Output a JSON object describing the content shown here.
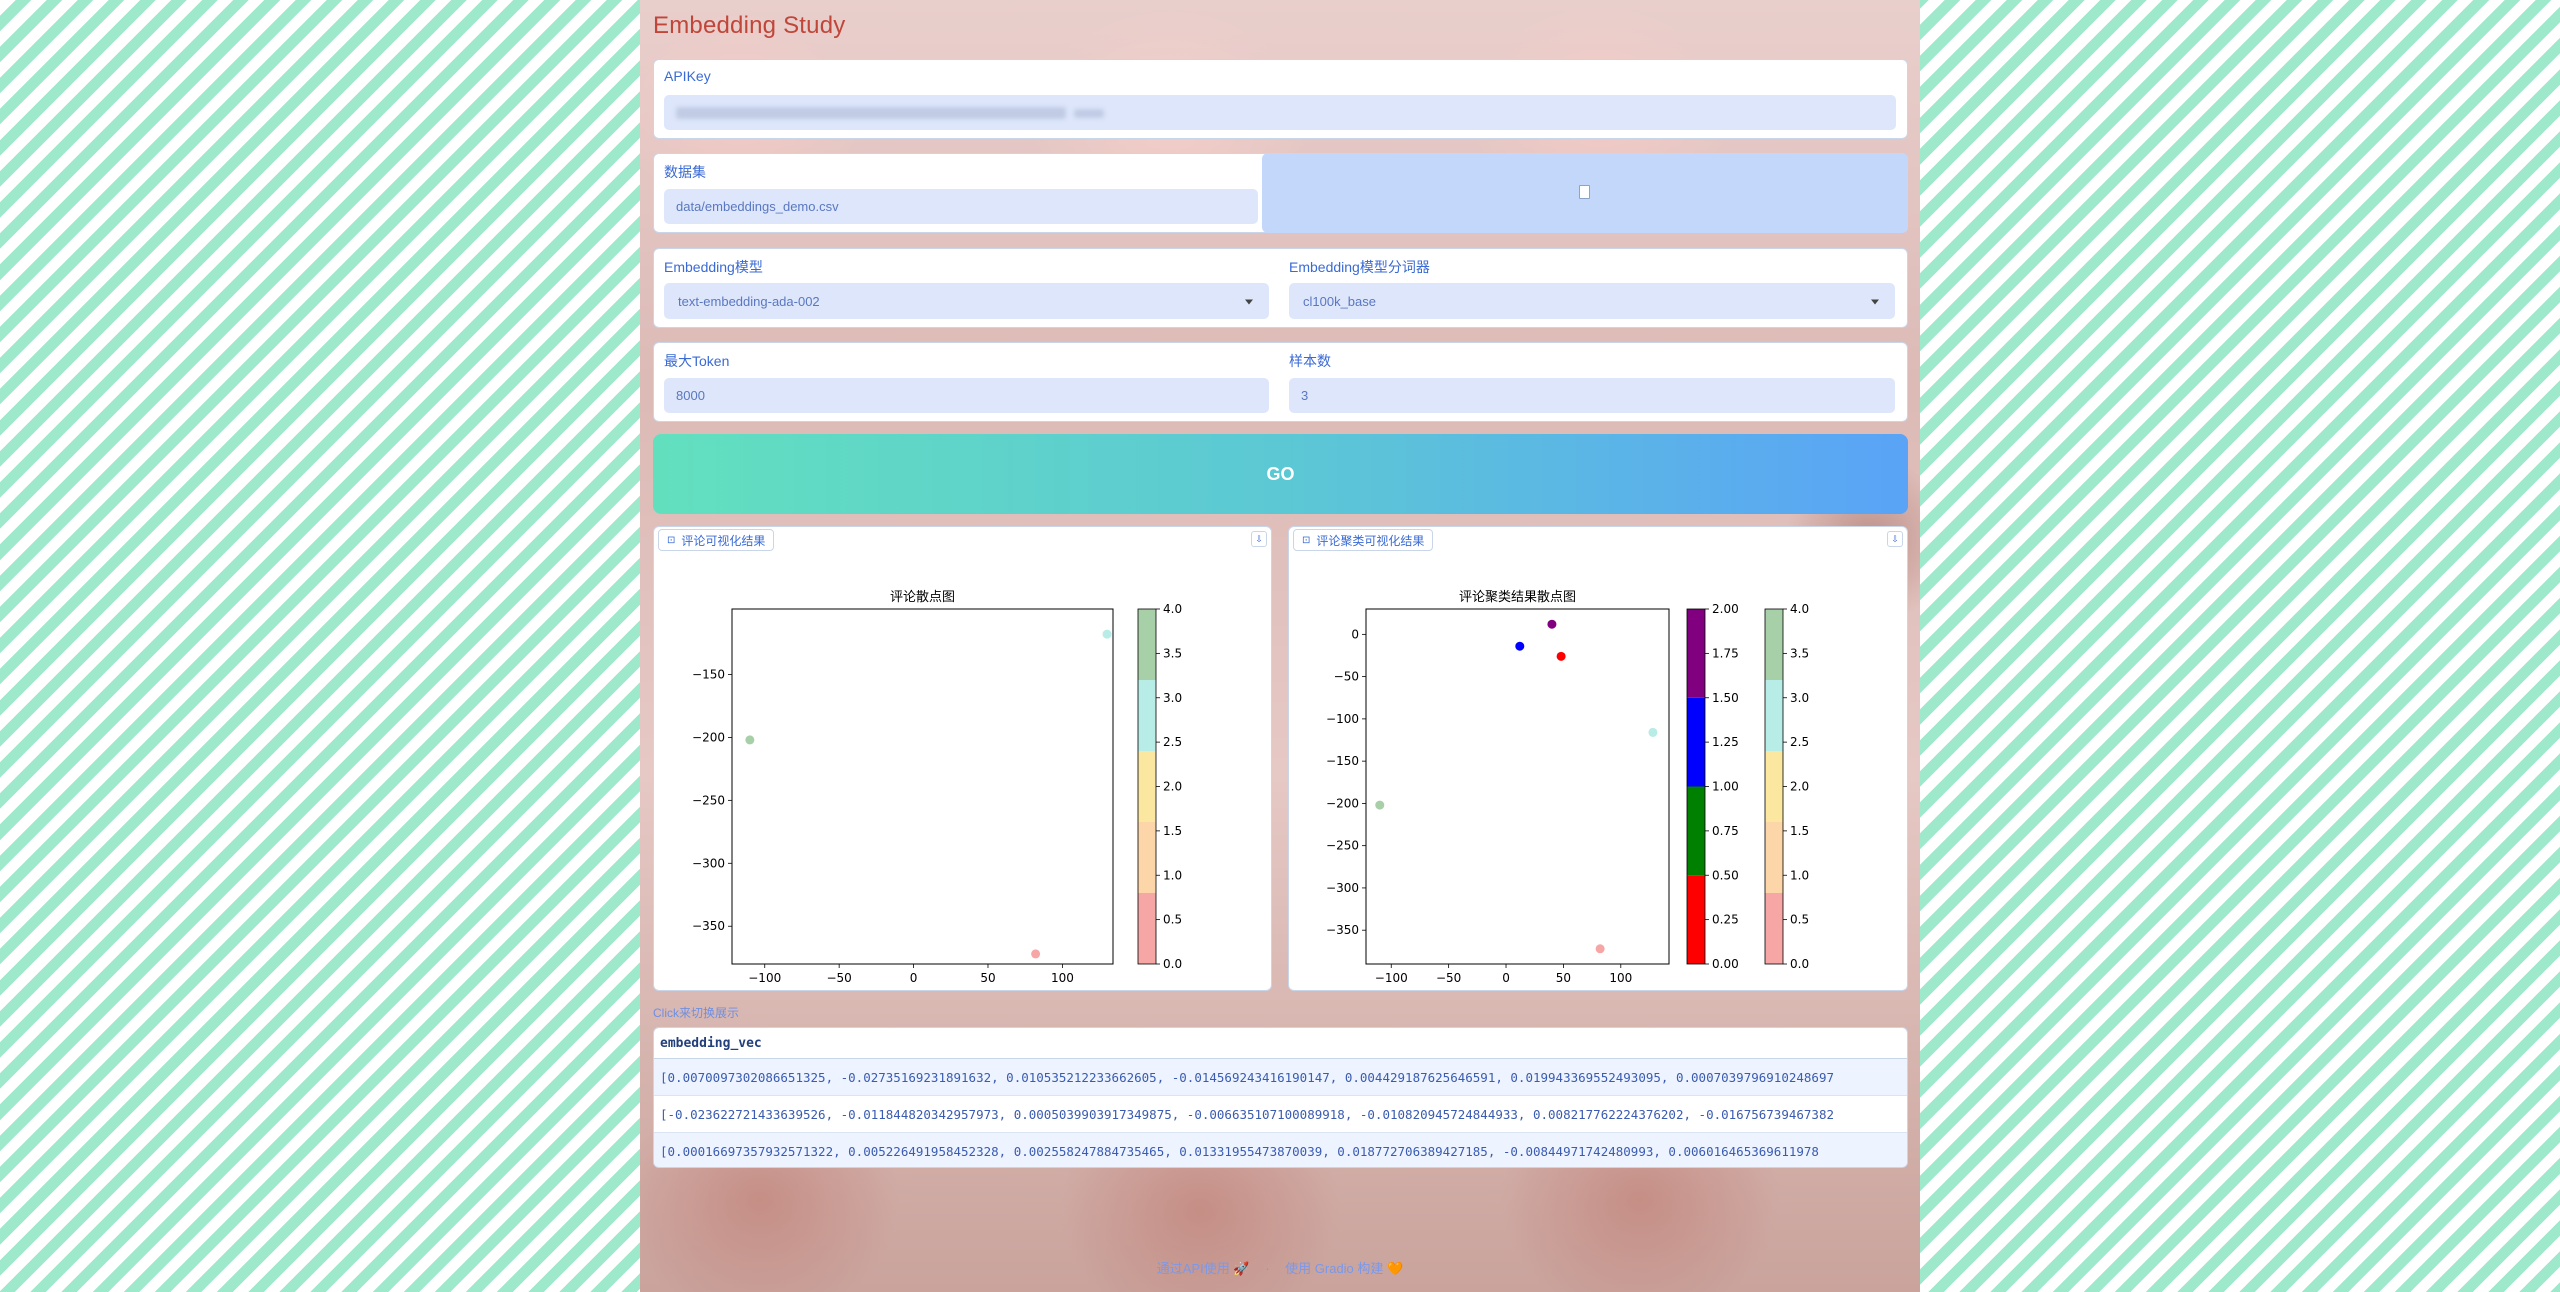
{
  "app": {
    "title": "Embedding Study"
  },
  "apikey": {
    "label": "APIKey",
    "value_masked": true
  },
  "dataset": {
    "label": "数据集",
    "value": "data/embeddings_demo.csv",
    "upload_icon": "file-icon"
  },
  "model": {
    "label": "Embedding模型",
    "value": "text-embedding-ada-002"
  },
  "tokenizer": {
    "label": "Embedding模型分词器",
    "value": "cl100k_base"
  },
  "max_token": {
    "label": "最大Token",
    "value": "8000"
  },
  "samples": {
    "label": "样本数",
    "value": "3"
  },
  "go_button": {
    "label": "GO"
  },
  "plot_left": {
    "tag": "评论可视化结果"
  },
  "plot_right": {
    "tag": "评论聚类可视化结果"
  },
  "chart_data": [
    {
      "type": "scatter",
      "title": "评论散点图",
      "xlim": [
        -122,
        134
      ],
      "ylim": [
        -380,
        -98
      ],
      "x_ticks": [
        "−100",
        "−50",
        "0",
        "50",
        "100"
      ],
      "y_ticks": [
        "−150",
        "−200",
        "−250",
        "−300",
        "−350"
      ],
      "points": [
        {
          "x": 130,
          "y": -118,
          "c": 3
        },
        {
          "x": -110,
          "y": -202,
          "c": 4
        },
        {
          "x": 82,
          "y": -372,
          "c": 0
        }
      ],
      "colorbar": {
        "min": 0,
        "max": 4,
        "ticks": [
          "0.0",
          "0.5",
          "1.0",
          "1.5",
          "2.0",
          "2.5",
          "3.0",
          "3.5",
          "4.0"
        ],
        "colors": [
          "#f7a6a6",
          "#fcd6a8",
          "#fbe7a0",
          "#b8ece6",
          "#a8d0a8"
        ]
      }
    },
    {
      "type": "scatter",
      "title": "评论聚类结果散点图",
      "xlim": [
        -122,
        142
      ],
      "ylim": [
        -390,
        30
      ],
      "x_ticks": [
        "−100",
        "−50",
        "0",
        "50",
        "100"
      ],
      "y_ticks": [
        "0",
        "−50",
        "−100",
        "−150",
        "−200",
        "−250",
        "−300",
        "−350"
      ],
      "points": [
        {
          "x": 40,
          "y": 12,
          "group": "purple"
        },
        {
          "x": 12,
          "y": -14,
          "group": "blue"
        },
        {
          "x": 48,
          "y": -26,
          "group": "red"
        },
        {
          "x": 128,
          "y": -116,
          "c": 3
        },
        {
          "x": -110,
          "y": -202,
          "c": 4
        },
        {
          "x": 82,
          "y": -372,
          "c": 0
        }
      ],
      "colorbar_cluster": {
        "ticks": [
          "0.00",
          "0.25",
          "0.50",
          "0.75",
          "1.00",
          "1.25",
          "1.50",
          "1.75",
          "2.00"
        ],
        "colors": [
          "#ff0000",
          "#008000",
          "#0000ff",
          "#800080"
        ]
      },
      "colorbar": {
        "ticks": [
          "0.0",
          "0.5",
          "1.0",
          "1.5",
          "2.0",
          "2.5",
          "3.0",
          "3.5",
          "4.0"
        ],
        "colors": [
          "#f7a6a6",
          "#fcd6a8",
          "#fbe7a0",
          "#b8ece6",
          "#a8d0a8"
        ]
      }
    }
  ],
  "table": {
    "link": "Click来切换展示",
    "header": "embedding_vec",
    "rows": [
      "[0.0070097302086651325, -0.02735169231891632, 0.010535212233662605, -0.014569243416190147, 0.004429187625646591, 0.019943369552493095, 0.0007039796910248697",
      "[-0.023622721433639526, -0.011844820342957973, 0.0005039903917349875, -0.006635107100089918, -0.010820945724844933, 0.008217762224376202, -0.016756739467382",
      "[0.00016697357932571322, 0.005226491958452328, 0.002558247884735465, 0.01331955473870039, 0.018772706389427185, -0.00844971742480993, 0.006016465369611978"
    ]
  },
  "footer": {
    "api": "通过API使用 🚀",
    "built": "使用 Gradio 构建 🧡"
  }
}
